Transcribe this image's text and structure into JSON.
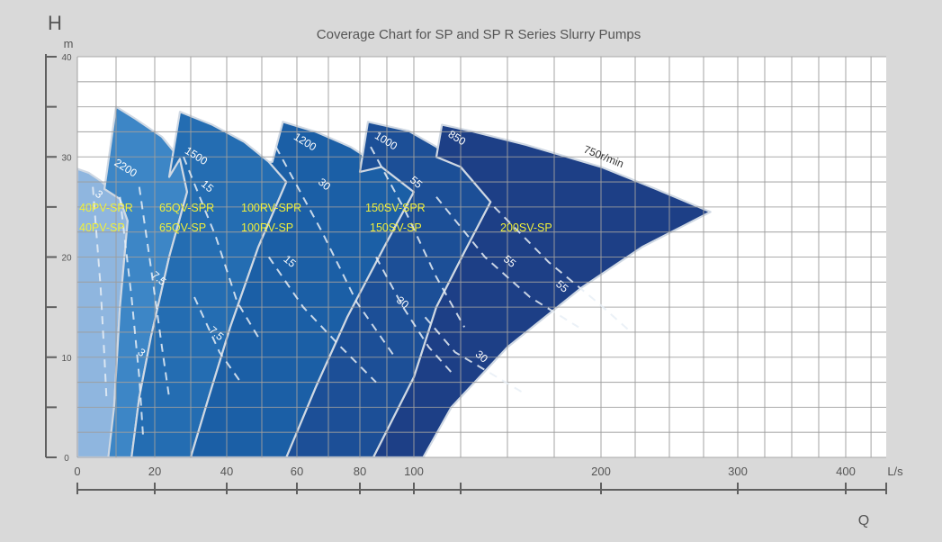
{
  "chart_data": {
    "type": "area",
    "title": "Coverage Chart for SP and SP R Series Slurry Pumps",
    "y_axis": {
      "letter": "H",
      "unit": "m",
      "range": [
        0,
        40
      ],
      "ticks": [
        0,
        10,
        20,
        30,
        40
      ],
      "tick_labels": [
        "0",
        "10",
        "20",
        "30",
        "40"
      ]
    },
    "x_axis": {
      "letter": "Q",
      "unit": "L/s",
      "scale": "non-linear",
      "ticks": [
        0,
        20,
        40,
        60,
        80,
        100,
        200,
        300,
        400
      ],
      "tick_labels": [
        "0",
        "20",
        "40",
        "60",
        "80",
        "100",
        "200",
        "300",
        "400"
      ]
    },
    "grid": true,
    "colors": {
      "background": "#d9d9d9",
      "plot_bg": "#ffffff",
      "grid": "#9e9e9e",
      "region_outline": "#cfd8e3",
      "model_label": "#f0ef3a",
      "curve_label": "#ffffff",
      "axis": "#606060",
      "text": "#555555"
    },
    "regions": [
      {
        "model_labels": [
          "40PV-SPR",
          "40PV-SP"
        ],
        "color": "#8fb6df",
        "outline": [
          [
            0,
            28.8
          ],
          [
            3,
            28.4
          ],
          [
            6,
            27.6
          ],
          [
            9,
            26.6
          ],
          [
            11,
            25.8
          ],
          [
            13,
            23.6
          ],
          [
            11,
            15
          ],
          [
            9.5,
            5
          ],
          [
            9,
            0
          ],
          [
            0,
            0
          ]
        ],
        "speed_label": "",
        "curves": [
          {
            "label": "3",
            "points": [
              [
                4,
                27
              ],
              [
                6,
                17
              ],
              [
                7,
                10
              ],
              [
                7.5,
                6
              ]
            ],
            "label_at": [
              5,
              26
            ]
          }
        ]
      },
      {
        "model_labels": [
          "65QV-SPR",
          "65QV-SP"
        ],
        "color": "#3d86c6",
        "outline": [
          [
            7,
            26.8
          ],
          [
            10,
            35
          ],
          [
            15,
            33.8
          ],
          [
            22,
            32
          ],
          [
            27,
            29.8
          ],
          [
            29,
            26.5
          ],
          [
            24,
            20
          ],
          [
            19,
            12
          ],
          [
            16,
            6
          ],
          [
            14,
            0
          ],
          [
            8,
            0
          ],
          [
            9.5,
            5
          ],
          [
            11,
            15
          ],
          [
            13,
            23.6
          ],
          [
            11,
            25.8
          ]
        ],
        "speed_label": "2200",
        "speed_label_at": [
          12,
          28.6
        ],
        "curves": [
          {
            "label": "3",
            "points": [
              [
                11,
                26
              ],
              [
                14,
                16
              ],
              [
                16,
                8
              ],
              [
                17,
                2
              ]
            ],
            "label_at": [
              16,
              10.2
            ]
          },
          {
            "label": "7.5",
            "points": [
              [
                16,
                27
              ],
              [
                19,
                19
              ],
              [
                22,
                11
              ],
              [
                24,
                6
              ]
            ],
            "label_at": [
              20.5,
              17.6
            ]
          }
        ]
      },
      {
        "model_labels": [
          "100RV-SPR",
          "100RV-SP"
        ],
        "color": "#246db2",
        "outline": [
          [
            24,
            28
          ],
          [
            27,
            34.5
          ],
          [
            36,
            33.2
          ],
          [
            45,
            31.5
          ],
          [
            52,
            29.5
          ],
          [
            57,
            27.5
          ],
          [
            49,
            21
          ],
          [
            41,
            13
          ],
          [
            35,
            6
          ],
          [
            30,
            0
          ],
          [
            14,
            0
          ],
          [
            16,
            6
          ],
          [
            19,
            12
          ],
          [
            24,
            20
          ],
          [
            29,
            26.5
          ],
          [
            27,
            29.8
          ]
        ],
        "speed_label": "1500",
        "speed_label_at": [
          31,
          29.8
        ],
        "curves": [
          {
            "label": "15",
            "points": [
              [
                28,
                30
              ],
              [
                37,
                22
              ],
              [
                43,
                15.5
              ],
              [
                49,
                12
              ]
            ],
            "label_at": [
              34,
              26.8
            ]
          },
          {
            "label": "7.5",
            "points": [
              [
                31,
                16
              ],
              [
                38,
                10.5
              ],
              [
                44,
                7.5
              ]
            ],
            "label_at": [
              36.5,
              12.1
            ]
          }
        ]
      },
      {
        "model_labels": [
          "150SV-SPR",
          "150SV-SP"
        ],
        "color": "#1b5fa6",
        "outline": [
          [
            53,
            29.5
          ],
          [
            56,
            33.5
          ],
          [
            66,
            32.5
          ],
          [
            77,
            31
          ],
          [
            88,
            29
          ],
          [
            100,
            26.5
          ],
          [
            89,
            21
          ],
          [
            76,
            14
          ],
          [
            66,
            7
          ],
          [
            57,
            0
          ],
          [
            30,
            0
          ],
          [
            35,
            6
          ],
          [
            41,
            13
          ],
          [
            49,
            21
          ],
          [
            57,
            27.5
          ],
          [
            52,
            29.5
          ]
        ],
        "speed_label": "1200",
        "speed_label_at": [
          62,
          31.2
        ],
        "curves": [
          {
            "label": "30",
            "points": [
              [
                54,
                31
              ],
              [
                68,
                22.5
              ],
              [
                79,
                15.5
              ],
              [
                93,
                10
              ]
            ],
            "label_at": [
              68,
              27
            ]
          },
          {
            "label": "15",
            "points": [
              [
                52,
                20
              ],
              [
                62,
                15
              ],
              [
                74,
                11
              ],
              [
                86,
                7.5
              ]
            ],
            "label_at": [
              57.3,
              19.3
            ]
          }
        ]
      },
      {
        "model_labels": [
          "200SV-SP"
        ],
        "color": "#1c4f97",
        "outline": [
          [
            80,
            28.5
          ],
          [
            83,
            33.5
          ],
          [
            98,
            32.6
          ],
          [
            112,
            31
          ],
          [
            125,
            29
          ],
          [
            141,
            25.5
          ],
          [
            127,
            20.5
          ],
          [
            112,
            15
          ],
          [
            100,
            8
          ],
          [
            85,
            0
          ],
          [
            57,
            0
          ],
          [
            66,
            7
          ],
          [
            76,
            14
          ],
          [
            89,
            21
          ],
          [
            100,
            26.5
          ],
          [
            88,
            29
          ]
        ],
        "speed_label": "1000",
        "speed_label_at": [
          89,
          31.3
        ],
        "curves": [
          {
            "label": "55",
            "points": [
              [
                84,
                31
              ],
              [
                97,
                24.5
              ],
              [
                112,
                18
              ],
              [
                127,
                13
              ]
            ],
            "label_at": [
              100,
              27.2
            ]
          },
          {
            "label": "30",
            "points": [
              [
                86,
                20
              ],
              [
                96,
                15
              ],
              [
                108,
                11
              ],
              [
                120,
                8.5
              ]
            ],
            "label_at": [
              95,
              15.2
            ]
          }
        ]
      },
      {
        "model_labels": [],
        "color": "#1d3f86",
        "outline": [
          [
            112,
            30
          ],
          [
            115,
            33.2
          ],
          [
            130,
            32.6
          ],
          [
            160,
            31.2
          ],
          [
            200,
            29
          ],
          [
            240,
            26.8
          ],
          [
            280,
            24.5
          ],
          [
            230,
            21
          ],
          [
            190,
            17
          ],
          [
            150,
            11
          ],
          [
            120,
            5
          ],
          [
            105,
            0
          ],
          [
            85,
            0
          ],
          [
            100,
            8
          ],
          [
            112,
            15
          ],
          [
            127,
            20.5
          ],
          [
            141,
            25.5
          ],
          [
            125,
            29
          ]
        ],
        "speed_label": "850",
        "speed_label_at": [
          122,
          31.6
        ],
        "curves": [
          {
            "label": "55",
            "points": [
              [
                112,
                26
              ],
              [
                138,
                20
              ],
              [
                162,
                16
              ],
              [
                188,
                13
              ]
            ],
            "label_at": [
              150,
              19.3
            ]
          },
          {
            "label": "30",
            "points": [
              [
                106,
                14
              ],
              [
                122,
                10.5
              ],
              [
                140,
                8.5
              ],
              [
                158,
                6.5
              ]
            ],
            "label_at": [
              135,
              9.8
            ]
          }
        ]
      }
    ],
    "outer_speed_label": "750r/min",
    "outer_speed_label_at": [
      201,
      29.7
    ],
    "outer_curves": [
      {
        "label": "55",
        "points": [
          [
            143,
            25
          ],
          [
            172,
            19.5
          ],
          [
            198,
            15.5
          ],
          [
            222,
            12.5
          ]
        ],
        "label_at": [
          178,
          16.8
        ]
      }
    ]
  }
}
